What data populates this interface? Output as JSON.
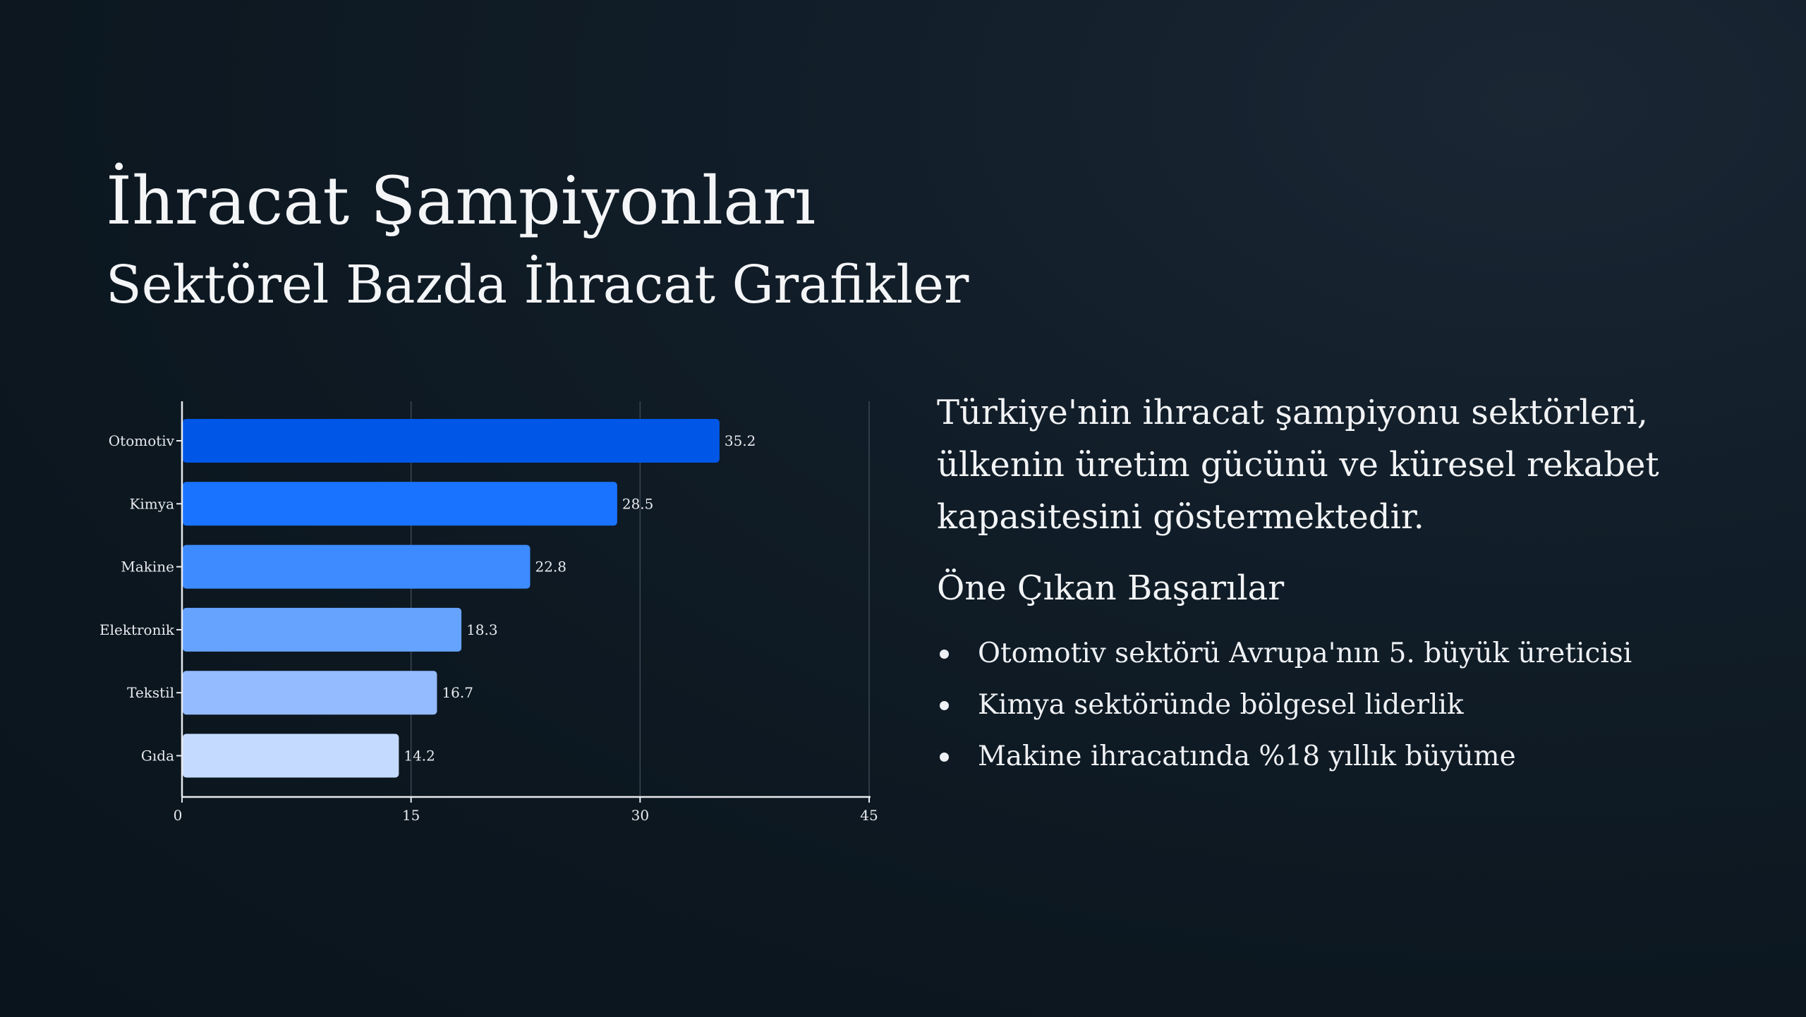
{
  "slide": {
    "title": "İhracat Şampiyonları",
    "subtitle": "Sektörel Bazda İhracat Grafikler",
    "description": "Türkiye'nin ihracat şampiyonu sektörleri, ülkenin üretim gücünü ve küresel rekabet kapasitesini göstermektedir.",
    "highlights_title": "Öne Çıkan Başarılar",
    "highlights": [
      "Otomotiv sektörü Avrupa'nın 5. büyük üreticisi",
      "Kimya sektöründe bölgesel liderlik",
      "Makine ihracatında %18 yıllık büyüme"
    ]
  },
  "chart_data": {
    "type": "bar",
    "orientation": "horizontal",
    "categories": [
      "Otomotiv",
      "Kimya",
      "Makine",
      "Elektronik",
      "Tekstil",
      "Gıda"
    ],
    "values": [
      35.2,
      28.5,
      22.8,
      18.3,
      16.7,
      14.2
    ],
    "value_labels": [
      "35.2",
      "28.5",
      "22.8",
      "18.3",
      "16.7",
      "14.2"
    ],
    "bar_colors": [
      "#0057e7",
      "#1a73ff",
      "#3d8bff",
      "#66a3ff",
      "#94bbff",
      "#c4dbff"
    ],
    "xlim": [
      0,
      45
    ],
    "xticks": [
      "0",
      "15",
      "30",
      "45"
    ],
    "grid": "vertical",
    "legend": "none"
  }
}
